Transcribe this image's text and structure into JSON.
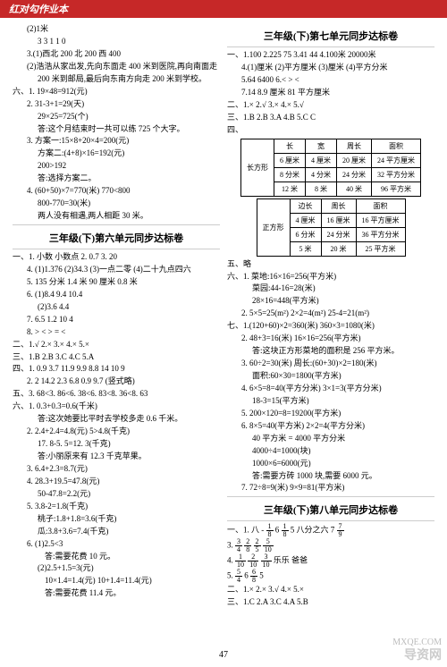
{
  "header": {
    "brand": "红对勾",
    "sub": "作业本"
  },
  "pageNum": "47",
  "left": {
    "lines": [
      {
        "cls": "indent1",
        "t": "(2)1米"
      },
      {
        "cls": "indent2",
        "t": "3  3  1  1  0"
      },
      {
        "cls": "indent1",
        "t": "3.(1)西北  200  北  200   西  400"
      },
      {
        "cls": "indent1",
        "t": "(2)浩浩从家出发,先向东面走 400 米到医院,再向南面走"
      },
      {
        "cls": "indent2",
        "t": "200 米到邮局,最后向东南方向走 200 米到学校。"
      },
      {
        "cls": "",
        "t": "六、1. 19×48=912(元)"
      },
      {
        "cls": "indent1",
        "t": "2. 31-3+1=29(天)"
      },
      {
        "cls": "indent2",
        "t": "29×25=725(个)"
      },
      {
        "cls": "indent2",
        "t": "答:这个月结束时一共可以练 725 个大字。"
      },
      {
        "cls": "indent1",
        "t": "3. 方案一:15×8+20×4=200(元)"
      },
      {
        "cls": "indent2",
        "t": "方案二:(4+8)×16=192(元)"
      },
      {
        "cls": "indent2",
        "t": "200>192"
      },
      {
        "cls": "indent2",
        "t": "答:选择方案二。"
      },
      {
        "cls": "indent1",
        "t": "4. (60+50)×7=770(米)   770<800"
      },
      {
        "cls": "indent2",
        "t": "800-770=30(米)"
      },
      {
        "cls": "indent2",
        "t": "两人没有相遇,两人相距 30 米。"
      }
    ],
    "title": "三年级(下)第六单元同步达标卷",
    "lines2": [
      {
        "cls": "",
        "t": "一、1. 小数   小数点   2. 0.7   3. 20"
      },
      {
        "cls": "indent1",
        "t": "4. (1)1.376   (2)34.3   (3)一点二零   (4)二十九点四六"
      },
      {
        "cls": "indent1",
        "t": "5. 135 分米   1.4 米   90 厘米   0.8 米"
      },
      {
        "cls": "indent1",
        "t": "6. (1)8.4   9.4   10.4"
      },
      {
        "cls": "indent2",
        "t": "(2)3.6   4.4"
      },
      {
        "cls": "indent1",
        "t": "7. 6.5   1.2   10   4"
      },
      {
        "cls": "indent1",
        "t": "8. >   <   >   =   <"
      },
      {
        "cls": "",
        "t": "二、1.√  2.×  3.×  4.×  5.×"
      },
      {
        "cls": "",
        "t": "三、1.B   2.B   3.C   4.C   5.A"
      },
      {
        "cls": "",
        "t": "四、1. 0.9   3.7   11.9   9.9   8.8   14   10   9"
      },
      {
        "cls": "indent1",
        "t": "2. 2   14.2   2.3   6.8   0.9   9.7  (竖式略)"
      },
      {
        "cls": "",
        "t": "五、3. 68<3. 86<6. 38<6. 83<8. 36<8. 63"
      },
      {
        "cls": "",
        "t": "六、1. 0.3+0.3=0.6(千米)"
      },
      {
        "cls": "indent2",
        "t": "答:这次她要比平时去学校多走 0.6 千米。"
      },
      {
        "cls": "indent1",
        "t": "2. 2.4+2.4=4.8(元)   5>4.8(千克)"
      },
      {
        "cls": "indent2",
        "t": "17. 8-5. 5=12. 3(千克)"
      },
      {
        "cls": "indent2",
        "t": "答:小丽原来有 12.3 千克苹果。"
      },
      {
        "cls": "indent1",
        "t": "3. 6.4+2.3=8.7(元)"
      },
      {
        "cls": "indent1",
        "t": "4. 28.3+19.5=47.8(元)"
      },
      {
        "cls": "indent2",
        "t": "50-47.8=2.2(元)"
      },
      {
        "cls": "indent1",
        "t": "5. 3.8-2=1.8(千克)"
      },
      {
        "cls": "indent2",
        "t": "桃子:1.8+1.8=3.6(千克)"
      },
      {
        "cls": "indent2",
        "t": "瓜:3.8+3.6=7.4(千克)"
      },
      {
        "cls": "indent1",
        "t": "6. (1)2.5<3"
      },
      {
        "cls": "indent3",
        "t": "答:需要花费 10 元。"
      },
      {
        "cls": "indent2",
        "t": "(2)2.5+1.5=3(元)"
      },
      {
        "cls": "indent3",
        "t": "10×1.4=1.4(元)   10+1.4=11.4(元)"
      },
      {
        "cls": "indent3",
        "t": "答:需要花费 11.4 元。"
      }
    ]
  },
  "right": {
    "title1": "三年级(下)第七单元同步达标卷",
    "lines1": [
      {
        "cls": "",
        "t": "一、1.100   2.225   75   3.41   44   4.100米  20000米"
      },
      {
        "cls": "indent1",
        "t": "4.(1)厘米  (2)平方厘米  (3)厘米  (4)平方分米"
      },
      {
        "cls": "indent1",
        "t": "5.64  6400  6.<  >  <"
      },
      {
        "cls": "indent1",
        "t": "7.14  8.9 厘米   81 平方厘米"
      },
      {
        "cls": "",
        "t": "二、1.×   2.√   3.×  4.×  5.√"
      },
      {
        "cls": "",
        "t": "三、1.B  2.B  3.A  4.B  5.C  C"
      }
    ],
    "table1": {
      "label": "长方形",
      "headers": [
        "长",
        "宽",
        "周长",
        "面积"
      ],
      "rows": [
        [
          "6 厘米",
          "4 厘米",
          "20 厘米",
          "24 平方厘米"
        ],
        [
          "8 分米",
          "4 分米",
          "24 分米",
          "32 平方分米"
        ],
        [
          "12 米",
          "8 米",
          "40 米",
          "96 平方米"
        ]
      ]
    },
    "table2": {
      "label": "正方形",
      "headers": [
        "边长",
        "周长",
        "面积"
      ],
      "rows": [
        [
          "4 厘米",
          "16 厘米",
          "16 平方厘米"
        ],
        [
          "6 分米",
          "24 分米",
          "36 平方分米"
        ],
        [
          "5 米",
          "20 米",
          "25 平方米"
        ]
      ]
    },
    "lines2": [
      {
        "cls": "",
        "t": "五、略"
      },
      {
        "cls": "",
        "t": "六、1. 菜地:16×16=256(平方米)"
      },
      {
        "cls": "indent2",
        "t": "菜园:44-16=28(米)"
      },
      {
        "cls": "indent2",
        "t": "28×16=448(平方米)"
      },
      {
        "cls": "indent1",
        "t": "2. 5×5=25(m²)   2×2=4(m²)   25-4=21(m²)"
      },
      {
        "cls": "",
        "t": "七、1.(120+60)×2=360(米)   360×3=1080(米)"
      },
      {
        "cls": "indent1",
        "t": "2. 48+3=16(米)   16×16=256(平方米)"
      },
      {
        "cls": "indent2",
        "t": "答:这块正方形菜地的面积是 256 平方米。"
      },
      {
        "cls": "indent1",
        "t": "3. 60÷2=30(米)   周长:(60+30)×2=180(米)"
      },
      {
        "cls": "indent2",
        "t": "面积:60×30=1800(平方米)"
      },
      {
        "cls": "indent1",
        "t": "4. 6×5=8=40(平方分米)   3×1=3(平方分米)"
      },
      {
        "cls": "indent2",
        "t": "18-3=15(平方米)"
      },
      {
        "cls": "indent1",
        "t": "5. 200×120=8=19200(平方米)"
      },
      {
        "cls": "indent1",
        "t": "6. 8×5=40(平方米)   2×2=4(平方分米)"
      },
      {
        "cls": "indent2",
        "t": "40 平方米 = 4000 平方分米"
      },
      {
        "cls": "indent2",
        "t": "4000÷4=1000(块)"
      },
      {
        "cls": "indent2",
        "t": "1000×6=6000(元)"
      },
      {
        "cls": "indent2",
        "t": "答:需要方砖 1000 块,需要 6000 元。"
      },
      {
        "cls": "indent1",
        "t": "7. 72÷8=9(米)   9×9=81(平方米)"
      }
    ],
    "title2": "三年级(下)第八单元同步达标卷",
    "fracLines": [
      {
        "pre": "一、1. 八 - ",
        "f1n": "1",
        "f1d": "8",
        "mid": "  6  ",
        "f2n": "1",
        "f2d": "8",
        "mid2": "  5  八分之六  7  ",
        "f3n": "7",
        "f3d": "9"
      },
      {
        "pre": "3. ",
        "f1n": "3",
        "f1d": "4",
        "mid": "  ",
        "f2n": "2",
        "f2d": "8",
        "mid2": "  ",
        "f3n": "2",
        "f3d": "5",
        "end": "  ",
        "f4n": "5",
        "f4d": "10"
      },
      {
        "pre": "4. ",
        "f1n": "1",
        "f1d": "10",
        "mid": "   ",
        "f2n": "2",
        "f2d": "10",
        "mid2": "   ",
        "f3n": "3",
        "f3d": "10",
        "end": "   乐乐   爸爸"
      },
      {
        "pre": "5. ",
        "f1n": "5",
        "f1d": "4",
        "mid": "  6  ",
        "f2n": "6",
        "f2d": "8",
        "mid2": "  5",
        "end": ""
      }
    ],
    "lines3": [
      {
        "cls": "",
        "t": "二、1.×   2.×   3.√   4.×   5.×"
      },
      {
        "cls": "",
        "t": "三、1.C   2.A   3.C   4.A   5.B"
      }
    ]
  },
  "watermark": "导资网",
  "watermark2": "MXQE.COM"
}
